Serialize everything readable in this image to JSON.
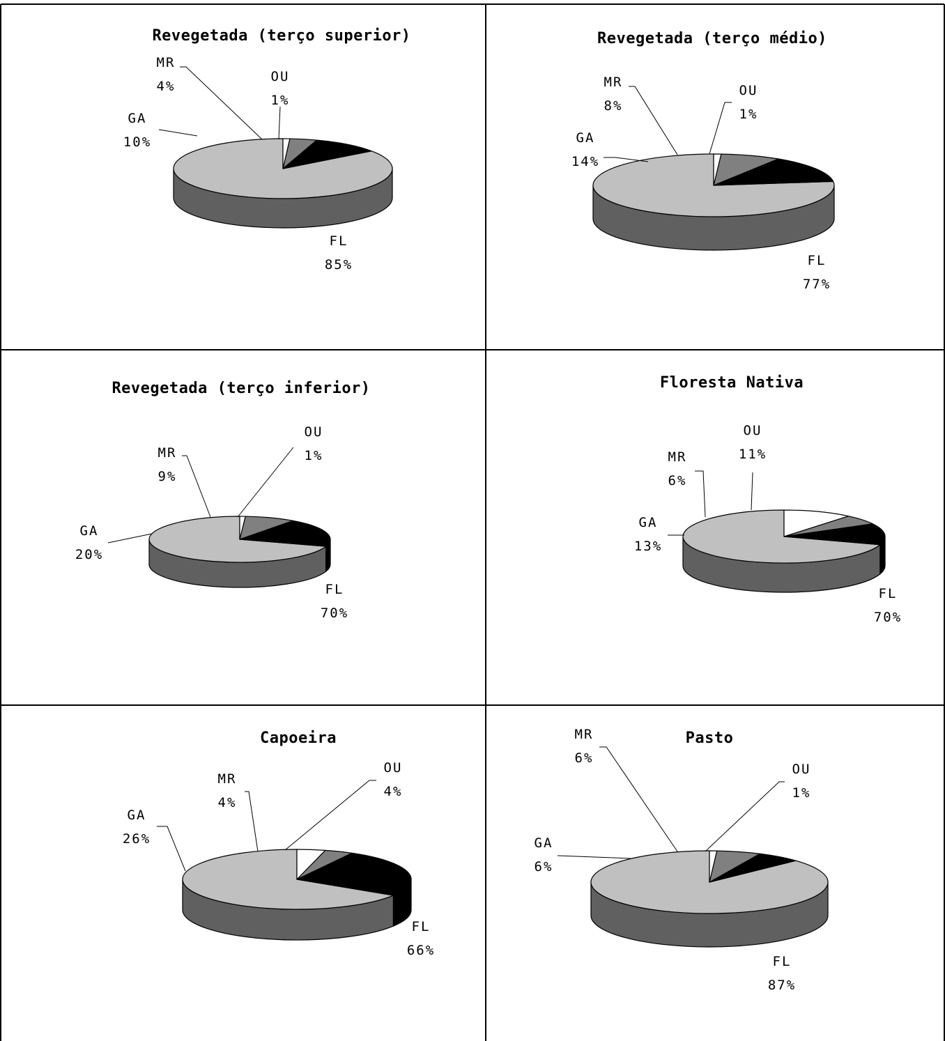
{
  "colors": {
    "FL": "#c0c0c0",
    "FL_side": "#606060",
    "GA": "#000000",
    "MR": "#808080",
    "OU": "#ffffff",
    "outline": "#000000",
    "background": "#ffffff"
  },
  "chart_data": [
    {
      "type": "pie",
      "title": "Revegetada (terço superior)",
      "categories": [
        "FL",
        "GA",
        "MR",
        "OU"
      ],
      "values": [
        85,
        10,
        4,
        1
      ],
      "value_labels": [
        "85%",
        "10%",
        "4%",
        "1%"
      ],
      "style": "3d-pie"
    },
    {
      "type": "pie",
      "title": "Revegetada (terço médio)",
      "categories": [
        "FL",
        "GA",
        "MR",
        "OU"
      ],
      "values": [
        77,
        14,
        8,
        1
      ],
      "value_labels": [
        "77%",
        "14%",
        "8%",
        "1%"
      ],
      "style": "3d-pie"
    },
    {
      "type": "pie",
      "title": "Revegetada (terço inferior)",
      "categories": [
        "FL",
        "GA",
        "MR",
        "OU"
      ],
      "values": [
        70,
        20,
        9,
        1
      ],
      "value_labels": [
        "70%",
        "20%",
        "9%",
        "1%"
      ],
      "style": "3d-pie"
    },
    {
      "type": "pie",
      "title": "Floresta Nativa",
      "categories": [
        "FL",
        "GA",
        "MR",
        "OU"
      ],
      "values": [
        70,
        13,
        6,
        11
      ],
      "value_labels": [
        "70%",
        "13%",
        "6%",
        "11%"
      ],
      "style": "3d-pie"
    },
    {
      "type": "pie",
      "title": "Capoeira",
      "categories": [
        "FL",
        "GA",
        "MR",
        "OU"
      ],
      "values": [
        66,
        26,
        4,
        4
      ],
      "value_labels": [
        "66%",
        "26%",
        "4%",
        "4%"
      ],
      "style": "3d-pie"
    },
    {
      "type": "pie",
      "title": "Pasto",
      "categories": [
        "FL",
        "GA",
        "MR",
        "OU"
      ],
      "values": [
        87,
        6,
        6,
        1
      ],
      "value_labels": [
        "87%",
        "6%",
        "6%",
        "1%"
      ],
      "style": "3d-pie"
    }
  ]
}
